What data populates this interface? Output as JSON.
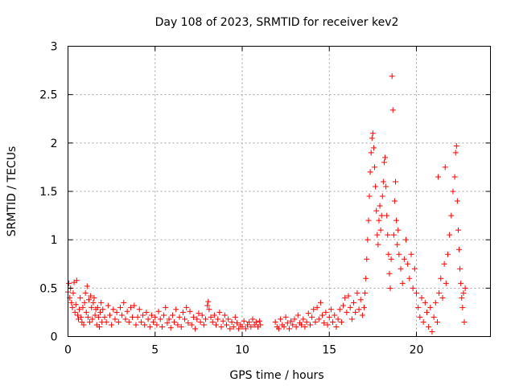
{
  "chart_data": {
    "type": "scatter",
    "title": "Day 108 of 2023, SRMTID for receiver kev2",
    "xlabel": "GPS time / hours",
    "ylabel": "SRMTID / TECUs",
    "xlim": [
      0,
      24.25
    ],
    "ylim": [
      0,
      3
    ],
    "xticks": [
      0,
      5,
      10,
      15,
      20
    ],
    "xtick_labels": [
      "0",
      "5",
      "10",
      "15",
      "20"
    ],
    "yticks": [
      0,
      0.5,
      1,
      1.5,
      2,
      2.5,
      3
    ],
    "ytick_labels": [
      "0",
      "0.5",
      "1",
      "1.5",
      "2",
      "2.5",
      "3"
    ],
    "grid": true,
    "marker": "+",
    "marker_color": "#ff0000",
    "series": [
      {
        "name": "kev2",
        "points": [
          [
            0.0,
            0.46
          ],
          [
            0.05,
            0.55
          ],
          [
            0.1,
            0.4
          ],
          [
            0.15,
            0.5
          ],
          [
            0.2,
            0.35
          ],
          [
            0.25,
            0.3
          ],
          [
            0.3,
            0.45
          ],
          [
            0.35,
            0.56
          ],
          [
            0.4,
            0.25
          ],
          [
            0.45,
            0.33
          ],
          [
            0.5,
            0.58
          ],
          [
            0.55,
            0.22
          ],
          [
            0.6,
            0.18
          ],
          [
            0.65,
            0.28
          ],
          [
            0.7,
            0.4
          ],
          [
            0.75,
            0.2
          ],
          [
            0.8,
            0.15
          ],
          [
            0.85,
            0.3
          ],
          [
            0.9,
            0.12
          ],
          [
            0.95,
            0.35
          ],
          [
            1.0,
            0.45
          ],
          [
            1.05,
            0.25
          ],
          [
            1.1,
            0.52
          ],
          [
            1.15,
            0.2
          ],
          [
            1.2,
            0.38
          ],
          [
            1.25,
            0.15
          ],
          [
            1.3,
            0.42
          ],
          [
            1.35,
            0.3
          ],
          [
            1.4,
            0.18
          ],
          [
            1.45,
            0.35
          ],
          [
            1.5,
            0.4
          ],
          [
            1.55,
            0.22
          ],
          [
            1.6,
            0.28
          ],
          [
            1.65,
            0.12
          ],
          [
            1.7,
            0.3
          ],
          [
            1.75,
            0.2
          ],
          [
            1.8,
            0.1
          ],
          [
            1.85,
            0.25
          ],
          [
            1.9,
            0.35
          ],
          [
            1.95,
            0.15
          ],
          [
            2.0,
            0.28
          ],
          [
            2.1,
            0.2
          ],
          [
            2.2,
            0.15
          ],
          [
            2.3,
            0.32
          ],
          [
            2.4,
            0.22
          ],
          [
            2.5,
            0.12
          ],
          [
            2.6,
            0.28
          ],
          [
            2.7,
            0.18
          ],
          [
            2.8,
            0.25
          ],
          [
            2.9,
            0.15
          ],
          [
            3.0,
            0.3
          ],
          [
            3.1,
            0.22
          ],
          [
            3.2,
            0.35
          ],
          [
            3.3,
            0.18
          ],
          [
            3.4,
            0.26
          ],
          [
            3.5,
            0.15
          ],
          [
            3.6,
            0.3
          ],
          [
            3.7,
            0.2
          ],
          [
            3.8,
            0.32
          ],
          [
            3.9,
            0.12
          ],
          [
            4.0,
            0.2
          ],
          [
            4.1,
            0.28
          ],
          [
            4.2,
            0.15
          ],
          [
            4.3,
            0.22
          ],
          [
            4.4,
            0.12
          ],
          [
            4.5,
            0.25
          ],
          [
            4.6,
            0.18
          ],
          [
            4.7,
            0.1
          ],
          [
            4.8,
            0.22
          ],
          [
            4.9,
            0.15
          ],
          [
            5.0,
            0.2
          ],
          [
            5.1,
            0.12
          ],
          [
            5.2,
            0.26
          ],
          [
            5.3,
            0.18
          ],
          [
            5.4,
            0.1
          ],
          [
            5.5,
            0.22
          ],
          [
            5.6,
            0.3
          ],
          [
            5.7,
            0.14
          ],
          [
            5.8,
            0.18
          ],
          [
            5.9,
            0.09
          ],
          [
            6.0,
            0.22
          ],
          [
            6.1,
            0.15
          ],
          [
            6.2,
            0.28
          ],
          [
            6.3,
            0.12
          ],
          [
            6.4,
            0.2
          ],
          [
            6.5,
            0.1
          ],
          [
            6.6,
            0.25
          ],
          [
            6.7,
            0.18
          ],
          [
            6.8,
            0.3
          ],
          [
            6.9,
            0.14
          ],
          [
            7.0,
            0.26
          ],
          [
            7.1,
            0.12
          ],
          [
            7.2,
            0.2
          ],
          [
            7.3,
            0.08
          ],
          [
            7.4,
            0.18
          ],
          [
            7.5,
            0.24
          ],
          [
            7.6,
            0.15
          ],
          [
            7.7,
            0.22
          ],
          [
            7.8,
            0.12
          ],
          [
            7.9,
            0.18
          ],
          [
            8.0,
            0.32
          ],
          [
            8.05,
            0.36
          ],
          [
            8.1,
            0.28
          ],
          [
            8.2,
            0.2
          ],
          [
            8.3,
            0.15
          ],
          [
            8.4,
            0.22
          ],
          [
            8.5,
            0.12
          ],
          [
            8.6,
            0.18
          ],
          [
            8.7,
            0.25
          ],
          [
            8.8,
            0.1
          ],
          [
            8.9,
            0.16
          ],
          [
            9.0,
            0.22
          ],
          [
            9.1,
            0.12
          ],
          [
            9.2,
            0.18
          ],
          [
            9.3,
            0.08
          ],
          [
            9.4,
            0.15
          ],
          [
            9.5,
            0.1
          ],
          [
            9.6,
            0.2
          ],
          [
            9.7,
            0.14
          ],
          [
            9.8,
            0.08
          ],
          [
            9.9,
            0.12
          ],
          [
            10.0,
            0.1
          ],
          [
            10.1,
            0.16
          ],
          [
            10.2,
            0.08
          ],
          [
            10.3,
            0.12
          ],
          [
            10.4,
            0.15
          ],
          [
            10.5,
            0.1
          ],
          [
            10.6,
            0.18
          ],
          [
            10.7,
            0.12
          ],
          [
            10.8,
            0.15
          ],
          [
            10.9,
            0.1
          ],
          [
            11.0,
            0.16
          ],
          [
            11.05,
            0.12
          ],
          [
            11.9,
            0.15
          ],
          [
            12.0,
            0.1
          ],
          [
            12.1,
            0.08
          ],
          [
            12.2,
            0.18
          ],
          [
            12.3,
            0.12
          ],
          [
            12.4,
            0.1
          ],
          [
            12.5,
            0.2
          ],
          [
            12.6,
            0.14
          ],
          [
            12.7,
            0.08
          ],
          [
            12.8,
            0.16
          ],
          [
            12.9,
            0.12
          ],
          [
            13.0,
            0.18
          ],
          [
            13.1,
            0.1
          ],
          [
            13.2,
            0.22
          ],
          [
            13.3,
            0.14
          ],
          [
            13.4,
            0.12
          ],
          [
            13.5,
            0.18
          ],
          [
            13.6,
            0.1
          ],
          [
            13.7,
            0.15
          ],
          [
            13.8,
            0.24
          ],
          [
            13.9,
            0.12
          ],
          [
            14.0,
            0.2
          ],
          [
            14.1,
            0.28
          ],
          [
            14.2,
            0.15
          ],
          [
            14.3,
            0.3
          ],
          [
            14.4,
            0.18
          ],
          [
            14.5,
            0.35
          ],
          [
            14.6,
            0.22
          ],
          [
            14.7,
            0.14
          ],
          [
            14.8,
            0.25
          ],
          [
            14.9,
            0.12
          ],
          [
            15.0,
            0.2
          ],
          [
            15.1,
            0.28
          ],
          [
            15.2,
            0.15
          ],
          [
            15.3,
            0.22
          ],
          [
            15.4,
            0.1
          ],
          [
            15.5,
            0.18
          ],
          [
            15.6,
            0.28
          ],
          [
            15.7,
            0.15
          ],
          [
            15.8,
            0.32
          ],
          [
            15.9,
            0.4
          ],
          [
            16.0,
            0.25
          ],
          [
            16.1,
            0.42
          ],
          [
            16.2,
            0.3
          ],
          [
            16.3,
            0.18
          ],
          [
            16.4,
            0.35
          ],
          [
            16.5,
            0.25
          ],
          [
            16.6,
            0.45
          ],
          [
            16.7,
            0.28
          ],
          [
            16.8,
            0.38
          ],
          [
            16.9,
            0.22
          ],
          [
            17.0,
            0.3
          ],
          [
            17.05,
            0.45
          ],
          [
            17.1,
            0.6
          ],
          [
            17.15,
            0.8
          ],
          [
            17.2,
            1.0
          ],
          [
            17.25,
            1.2
          ],
          [
            17.3,
            1.45
          ],
          [
            17.35,
            1.7
          ],
          [
            17.4,
            1.9
          ],
          [
            17.45,
            2.05
          ],
          [
            17.5,
            2.1
          ],
          [
            17.55,
            1.95
          ],
          [
            17.6,
            1.75
          ],
          [
            17.65,
            1.55
          ],
          [
            17.7,
            1.3
          ],
          [
            17.75,
            1.05
          ],
          [
            17.8,
            0.95
          ],
          [
            17.85,
            1.2
          ],
          [
            17.9,
            1.35
          ],
          [
            17.95,
            1.1
          ],
          [
            18.0,
            1.25
          ],
          [
            18.05,
            1.45
          ],
          [
            18.1,
            1.6
          ],
          [
            18.15,
            1.8
          ],
          [
            18.2,
            1.85
          ],
          [
            18.25,
            1.55
          ],
          [
            18.3,
            1.25
          ],
          [
            18.35,
            1.05
          ],
          [
            18.4,
            0.85
          ],
          [
            18.45,
            0.65
          ],
          [
            18.5,
            0.5
          ],
          [
            18.55,
            0.8
          ],
          [
            18.6,
            2.69
          ],
          [
            18.65,
            2.34
          ],
          [
            18.7,
            1.05
          ],
          [
            18.75,
            1.4
          ],
          [
            18.8,
            1.6
          ],
          [
            18.85,
            1.2
          ],
          [
            18.9,
            0.95
          ],
          [
            18.95,
            1.1
          ],
          [
            19.0,
            0.85
          ],
          [
            19.1,
            0.7
          ],
          [
            19.2,
            0.55
          ],
          [
            19.3,
            0.8
          ],
          [
            19.4,
            1.0
          ],
          [
            19.5,
            0.75
          ],
          [
            19.6,
            0.6
          ],
          [
            19.7,
            0.85
          ],
          [
            19.8,
            0.5
          ],
          [
            19.9,
            0.7
          ],
          [
            20.0,
            0.45
          ],
          [
            20.1,
            0.3
          ],
          [
            20.2,
            0.2
          ],
          [
            20.3,
            0.4
          ],
          [
            20.4,
            0.15
          ],
          [
            20.5,
            0.35
          ],
          [
            20.6,
            0.25
          ],
          [
            20.7,
            0.1
          ],
          [
            20.8,
            0.3
          ],
          [
            20.9,
            0.05
          ],
          [
            21.0,
            0.2
          ],
          [
            21.1,
            0.35
          ],
          [
            21.2,
            0.15
          ],
          [
            21.25,
            1.65
          ],
          [
            21.3,
            0.45
          ],
          [
            21.4,
            0.6
          ],
          [
            21.5,
            0.4
          ],
          [
            21.6,
            0.75
          ],
          [
            21.65,
            1.75
          ],
          [
            21.7,
            0.55
          ],
          [
            21.8,
            0.85
          ],
          [
            21.9,
            1.05
          ],
          [
            22.0,
            1.25
          ],
          [
            22.1,
            1.5
          ],
          [
            22.2,
            1.65
          ],
          [
            22.25,
            1.9
          ],
          [
            22.3,
            1.97
          ],
          [
            22.35,
            1.4
          ],
          [
            22.4,
            1.1
          ],
          [
            22.45,
            0.9
          ],
          [
            22.5,
            0.7
          ],
          [
            22.55,
            0.55
          ],
          [
            22.6,
            0.4
          ],
          [
            22.65,
            0.3
          ],
          [
            22.7,
            0.45
          ],
          [
            22.75,
            0.15
          ],
          [
            22.8,
            0.5
          ]
        ]
      }
    ]
  }
}
